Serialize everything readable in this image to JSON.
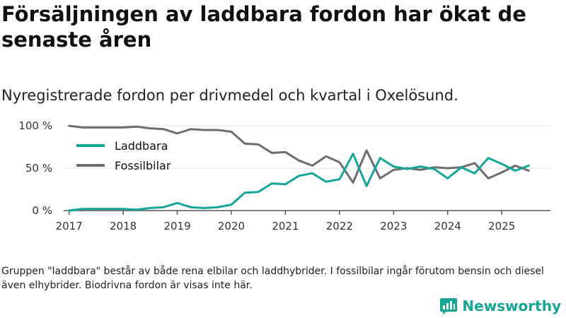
{
  "title": "Försäljningen av laddbara fordon har ökat de senaste åren",
  "subtitle": "Nyregistrerade fordon per drivmedel och kvartal i Oxelösund.",
  "footnote": "Gruppen \"laddbara\" består av både rena elbilar och laddhybrider. I fossilbilar ingår förutom bensin och diesel även elhybrider. Biodrivna fordon är visas inte här.",
  "brand": {
    "name": "Newsworthy",
    "icon": "newsworthy-chart-icon"
  },
  "colors": {
    "laddbara": "#16a697",
    "fossil": "#6e6d72",
    "grid": "#e3e3e3",
    "axis": "#555555"
  },
  "chart_data": {
    "type": "line",
    "title": "Försäljningen av laddbara fordon har ökat de senaste åren",
    "xlabel": "",
    "ylabel": "",
    "ylim": [
      0,
      100
    ],
    "xlim": [
      2016.9,
      2025.9
    ],
    "yticks": [
      0,
      50,
      100
    ],
    "ytick_labels": [
      "0 %",
      "50 %",
      "100 %"
    ],
    "xticks": [
      2017,
      2018,
      2019,
      2020,
      2021,
      2022,
      2023,
      2024,
      2025
    ],
    "xtick_labels": [
      "2017",
      "2018",
      "2019",
      "2020",
      "2021",
      "2022",
      "2023",
      "2024",
      "2025"
    ],
    "grid": true,
    "legend": "top-left",
    "x": [
      2017.0,
      2017.25,
      2017.5,
      2017.75,
      2018.0,
      2018.25,
      2018.5,
      2018.75,
      2019.0,
      2019.25,
      2019.5,
      2019.75,
      2020.0,
      2020.25,
      2020.5,
      2020.75,
      2021.0,
      2021.25,
      2021.5,
      2021.75,
      2022.0,
      2022.25,
      2022.5,
      2022.75,
      2023.0,
      2023.25,
      2023.5,
      2023.75,
      2024.0,
      2024.25,
      2024.5,
      2024.75,
      2025.0,
      2025.25,
      2025.5
    ],
    "series": [
      {
        "name": "Laddbara",
        "key": "laddbara",
        "values": [
          0,
          2,
          2,
          2,
          2,
          1,
          3,
          4,
          9,
          4,
          3,
          4,
          7,
          21,
          22,
          32,
          31,
          41,
          44,
          34,
          37,
          67,
          29,
          62,
          52,
          49,
          52,
          49,
          38,
          51,
          44,
          62,
          55,
          47,
          53
        ]
      },
      {
        "name": "Fossilbilar",
        "key": "fossil",
        "values": [
          100,
          98,
          98,
          98,
          98,
          99,
          97,
          96,
          91,
          96,
          95,
          95,
          93,
          79,
          78,
          68,
          69,
          59,
          53,
          64,
          57,
          33,
          71,
          38,
          48,
          50,
          48,
          51,
          50,
          51,
          56,
          38,
          45,
          53,
          47
        ]
      }
    ]
  }
}
